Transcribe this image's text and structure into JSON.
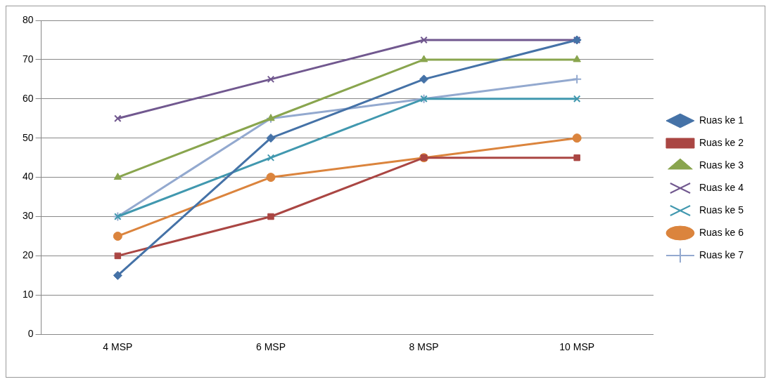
{
  "chart_data": {
    "type": "line",
    "categories": [
      "4 MSP",
      "6 MSP",
      "8 MSP",
      "10 MSP"
    ],
    "series": [
      {
        "name": "Ruas ke 1",
        "color": "#4572a7",
        "marker": "diamond",
        "values": [
          15,
          50,
          65,
          75
        ]
      },
      {
        "name": "Ruas ke 2",
        "color": "#aa4643",
        "marker": "square",
        "values": [
          20,
          30,
          45,
          45
        ]
      },
      {
        "name": "Ruas ke 3",
        "color": "#89a54e",
        "marker": "triangle",
        "values": [
          40,
          55,
          70,
          70
        ]
      },
      {
        "name": "Ruas ke 4",
        "color": "#71588f",
        "marker": "cross",
        "values": [
          55,
          65,
          75,
          75
        ]
      },
      {
        "name": "Ruas ke 5",
        "color": "#4198af",
        "marker": "cross",
        "values": [
          30,
          45,
          60,
          60
        ]
      },
      {
        "name": "Ruas ke 6",
        "color": "#db843d",
        "marker": "circle",
        "values": [
          25,
          40,
          45,
          50
        ]
      },
      {
        "name": "Ruas ke 7",
        "color": "#93a9cf",
        "marker": "plus",
        "values": [
          30,
          55,
          60,
          65
        ]
      }
    ],
    "ylim": [
      0,
      80
    ],
    "yticks": [
      0,
      10,
      20,
      30,
      40,
      50,
      60,
      70,
      80
    ],
    "grid": "y",
    "legend": "right",
    "line_style": "solid"
  }
}
